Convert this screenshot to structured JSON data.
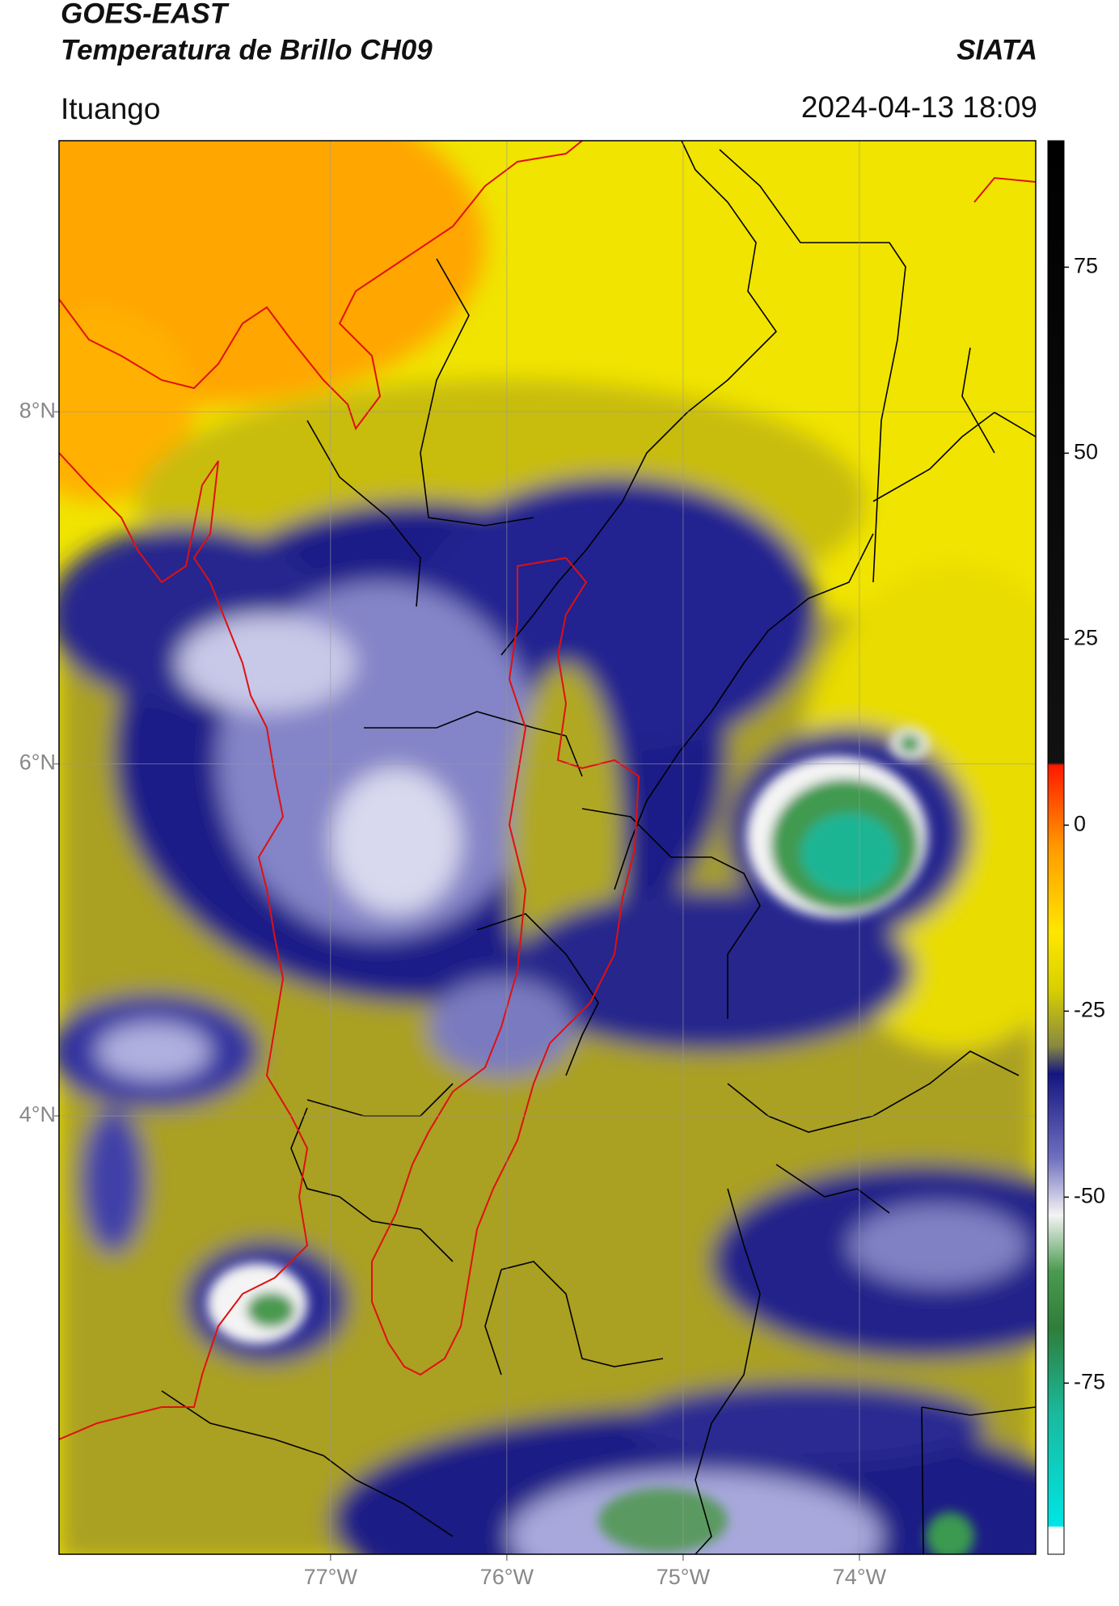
{
  "map": {
    "title": "GOES-EAST",
    "subtitle": "Temperatura de Brillo CH09",
    "source": "SIATA",
    "location": "Ituango",
    "datetime": "2024-04-13 18:09",
    "xlim": [
      -78.54,
      -73.0
    ],
    "ylim": [
      1.51,
      9.54
    ],
    "xticks": [
      {
        "value": -77,
        "label": "77°W"
      },
      {
        "value": -76,
        "label": "76°W"
      },
      {
        "value": -75,
        "label": "75°W"
      },
      {
        "value": -74,
        "label": "74°W"
      }
    ],
    "yticks": [
      {
        "value": 8,
        "label": "8°N"
      },
      {
        "value": 6,
        "label": "6°N"
      },
      {
        "value": 4,
        "label": "4°N"
      }
    ],
    "grid": true,
    "colorbar": {
      "lim": [
        -98,
        92
      ],
      "ticks": [
        75,
        50,
        25,
        0,
        -25,
        -50,
        -75
      ]
    }
  }
}
